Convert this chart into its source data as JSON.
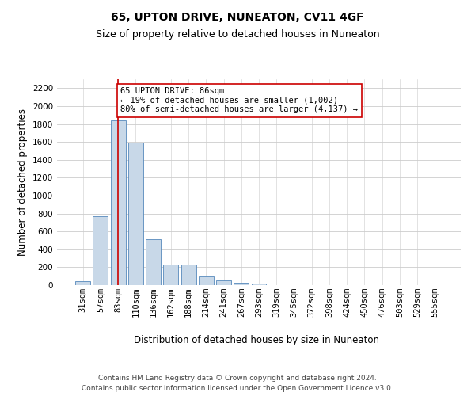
{
  "title": "65, UPTON DRIVE, NUNEATON, CV11 4GF",
  "subtitle": "Size of property relative to detached houses in Nuneaton",
  "xlabel": "Distribution of detached houses by size in Nuneaton",
  "ylabel": "Number of detached properties",
  "categories": [
    "31sqm",
    "57sqm",
    "83sqm",
    "110sqm",
    "136sqm",
    "162sqm",
    "188sqm",
    "214sqm",
    "241sqm",
    "267sqm",
    "293sqm",
    "319sqm",
    "345sqm",
    "372sqm",
    "398sqm",
    "424sqm",
    "450sqm",
    "476sqm",
    "503sqm",
    "529sqm",
    "555sqm"
  ],
  "values": [
    40,
    770,
    1840,
    1590,
    510,
    230,
    230,
    100,
    50,
    30,
    20,
    0,
    0,
    0,
    0,
    0,
    0,
    0,
    0,
    0,
    0
  ],
  "bar_color": "#c8d8e8",
  "bar_edge_color": "#5588bb",
  "vline_x": 2.0,
  "vline_color": "#cc0000",
  "annotation_text": "65 UPTON DRIVE: 86sqm\n← 19% of detached houses are smaller (1,002)\n80% of semi-detached houses are larger (4,137) →",
  "annotation_box_color": "#ffffff",
  "annotation_box_edge": "#cc0000",
  "ylim": [
    0,
    2300
  ],
  "yticks": [
    0,
    200,
    400,
    600,
    800,
    1000,
    1200,
    1400,
    1600,
    1800,
    2000,
    2200
  ],
  "footer_line1": "Contains HM Land Registry data © Crown copyright and database right 2024.",
  "footer_line2": "Contains public sector information licensed under the Open Government Licence v3.0.",
  "bg_color": "#ffffff",
  "grid_color": "#cccccc",
  "title_fontsize": 10,
  "subtitle_fontsize": 9,
  "axis_label_fontsize": 8.5,
  "tick_fontsize": 7.5,
  "annotation_fontsize": 7.5,
  "footer_fontsize": 6.5
}
